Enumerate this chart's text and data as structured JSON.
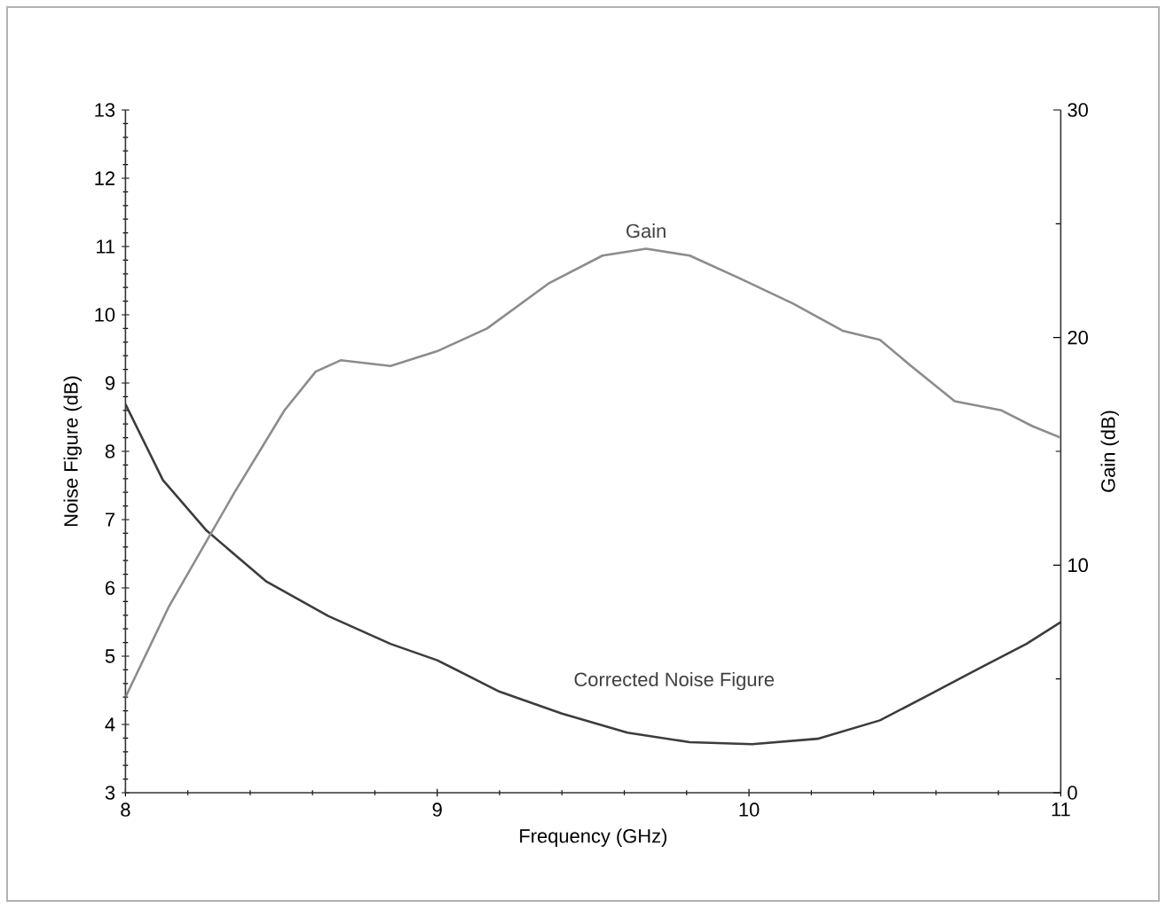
{
  "chart_data": {
    "type": "line",
    "xlabel": "Frequency (GHz)",
    "ylabel": "Noise Figure (dB)",
    "y2label": "Gain (dB)",
    "xlim": [
      8,
      11
    ],
    "xticks": [
      8,
      9,
      10,
      11
    ],
    "ylim": [
      3,
      13
    ],
    "yticks": [
      3,
      4,
      5,
      6,
      7,
      8,
      9,
      10,
      11,
      12,
      13
    ],
    "y2lim": [
      0,
      30
    ],
    "y2ticks": [
      0,
      10,
      20,
      30
    ],
    "series": [
      {
        "name": "Gain",
        "color": "#8c8c8c",
        "axis": "y2",
        "x": [
          8.0,
          8.14,
          8.35,
          8.51,
          8.61,
          8.69,
          8.85,
          9.0,
          9.16,
          9.36,
          9.53,
          9.67,
          9.81,
          9.97,
          10.14,
          10.3,
          10.42,
          10.52,
          10.66,
          10.81,
          10.91,
          11.0
        ],
        "values": [
          4.2,
          8.2,
          13.2,
          16.8,
          18.5,
          19.0,
          18.75,
          19.4,
          20.4,
          22.4,
          23.6,
          23.9,
          23.6,
          22.6,
          21.5,
          20.3,
          19.9,
          18.75,
          17.2,
          16.8,
          16.1,
          15.6
        ]
      },
      {
        "name": "Corrected Noise Figure",
        "color": "#3c3c3c",
        "x": [
          8.0,
          8.12,
          8.26,
          8.45,
          8.65,
          8.85,
          9.0,
          9.2,
          9.4,
          9.61,
          9.81,
          10.01,
          10.22,
          10.42,
          10.58,
          10.75,
          10.89,
          11.0
        ],
        "values": [
          8.69,
          7.58,
          6.84,
          6.1,
          5.59,
          5.18,
          4.94,
          4.48,
          4.16,
          3.88,
          3.74,
          3.71,
          3.79,
          4.06,
          4.44,
          4.85,
          5.18,
          5.5
        ]
      }
    ]
  }
}
